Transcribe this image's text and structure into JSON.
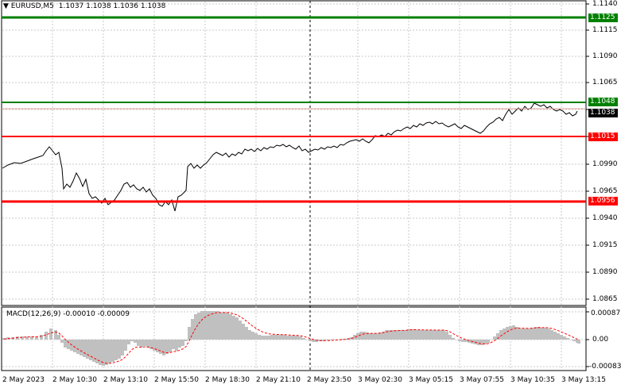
{
  "header": {
    "symbol_timeframe": "EURUSD,M5",
    "ohlc": "1.1037 1.1038 1.1036 1.1038",
    "dropdown_icon": "triangle-down-icon"
  },
  "price_axis": {
    "ticks": [
      "1.1140",
      "1.1115",
      "1.1090",
      "1.1065",
      "1.1040",
      "1.1015",
      "1.0990",
      "1.0965",
      "1.0940",
      "1.0915",
      "1.0890",
      "1.0865"
    ]
  },
  "levels": [
    {
      "name": "resistance-2",
      "value": "1.1125",
      "color": "#008000"
    },
    {
      "name": "resistance-1",
      "value": "1.1048",
      "color": "#008000"
    },
    {
      "name": "current-price",
      "value": "1.1038",
      "color": "#000000"
    },
    {
      "name": "support-1",
      "value": "1.1015",
      "color": "#ff0000"
    },
    {
      "name": "support-2",
      "value": "1.0956",
      "color": "#ff0000"
    }
  ],
  "macd": {
    "label": "MACD(12,26,9) -0.00010 -0.00009",
    "ticks": [
      "0.00087",
      "0.00",
      "-0.00083"
    ]
  },
  "time_axis": {
    "labels": [
      "2 May 2023",
      "2 May 10:30",
      "2 May 13:10",
      "2 May 15:50",
      "2 May 18:30",
      "2 May 21:10",
      "2 May 23:50",
      "3 May 02:30",
      "3 May 05:15",
      "3 May 07:55",
      "3 May 10:35",
      "3 May 13:15"
    ]
  },
  "colors": {
    "background": "#ffffff",
    "grid": "#c8c8c8",
    "price_line": "#000000",
    "macd_histogram": "#c0c0c0",
    "macd_signal": "#ff0000"
  }
}
